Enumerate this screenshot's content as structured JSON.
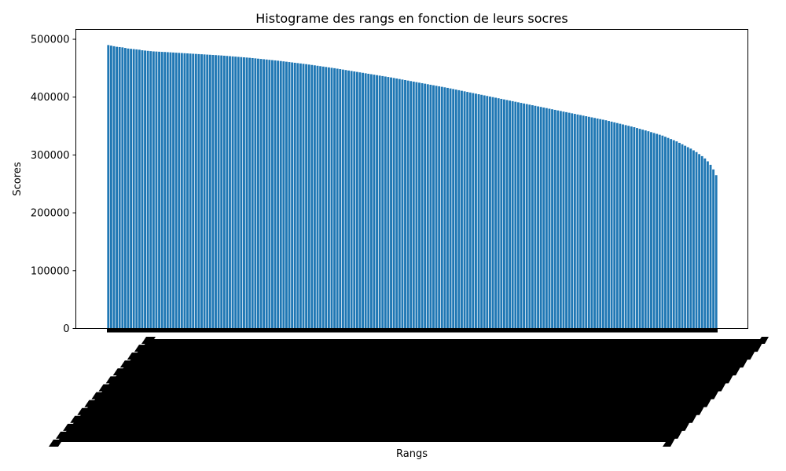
{
  "chart_data": {
    "type": "bar",
    "title": "Histograme des rangs en fonction de leurs socres",
    "xlabel": "Rangs",
    "ylabel": "Scores",
    "ylim": [
      0,
      517000
    ],
    "yticks": [
      0,
      100000,
      200000,
      300000,
      400000,
      500000
    ],
    "ytick_labels": [
      "0",
      "100000",
      "200000",
      "300000",
      "400000",
      "500000"
    ],
    "bar_color": "#1f77b4",
    "grid": false,
    "legend": "none",
    "series": [
      {
        "values": [
          490000,
          489000,
          488000,
          487000,
          486500,
          486000,
          485000,
          484000,
          483500,
          483000,
          482500,
          482000,
          481000,
          480500,
          480000,
          479500,
          479000,
          478800,
          478500,
          478200,
          478000,
          477700,
          477400,
          477100,
          476800,
          476500,
          476200,
          475900,
          475600,
          475300,
          475000,
          474700,
          474400,
          474100,
          473800,
          473500,
          473200,
          472900,
          472600,
          472300,
          472000,
          471600,
          471200,
          470800,
          470400,
          470000,
          469600,
          469200,
          468800,
          468400,
          468000,
          467500,
          467000,
          466500,
          466000,
          465500,
          465000,
          464500,
          464000,
          463500,
          463000,
          462400,
          461800,
          461200,
          460600,
          460000,
          459400,
          458800,
          458200,
          457600,
          457000,
          456300,
          455600,
          454900,
          454200,
          453500,
          452800,
          452100,
          451400,
          450700,
          450000,
          449200,
          448400,
          447600,
          446800,
          446000,
          445200,
          444400,
          443600,
          442800,
          442000,
          441200,
          440400,
          439600,
          438800,
          438000,
          437200,
          436400,
          435600,
          434800,
          434000,
          433100,
          432200,
          431300,
          430400,
          429500,
          428600,
          427700,
          426800,
          425900,
          425000,
          424100,
          423200,
          422300,
          421400,
          420500,
          419600,
          418700,
          417800,
          416900,
          416000,
          415000,
          414000,
          413000,
          412000,
          411000,
          410000,
          409000,
          408000,
          407000,
          406000,
          405000,
          404000,
          403000,
          402000,
          401000,
          400000,
          399000,
          398000,
          397000,
          396000,
          395000,
          394000,
          393000,
          392000,
          391000,
          390000,
          389000,
          388000,
          387000,
          386000,
          385000,
          384000,
          383000,
          382000,
          381000,
          380000,
          379000,
          378000,
          377000,
          376000,
          375000,
          374000,
          373000,
          372000,
          371000,
          370000,
          369000,
          368000,
          367000,
          366000,
          365000,
          364000,
          363000,
          362000,
          361000,
          360000,
          358800,
          357600,
          356400,
          355200,
          354000,
          352800,
          351600,
          350400,
          349200,
          348000,
          346600,
          345200,
          343800,
          342400,
          341000,
          339500,
          338000,
          336500,
          335000,
          333500,
          331500,
          329500,
          327500,
          325500,
          323500,
          321000,
          318500,
          316000,
          313500,
          311000,
          308000,
          305000,
          301500,
          298000,
          294000,
          289000,
          283000,
          275000,
          265000
        ]
      }
    ],
    "x_tick_note": "x tick labels are rendered as an overlapping dense black band of rotated text (unreadable)"
  }
}
